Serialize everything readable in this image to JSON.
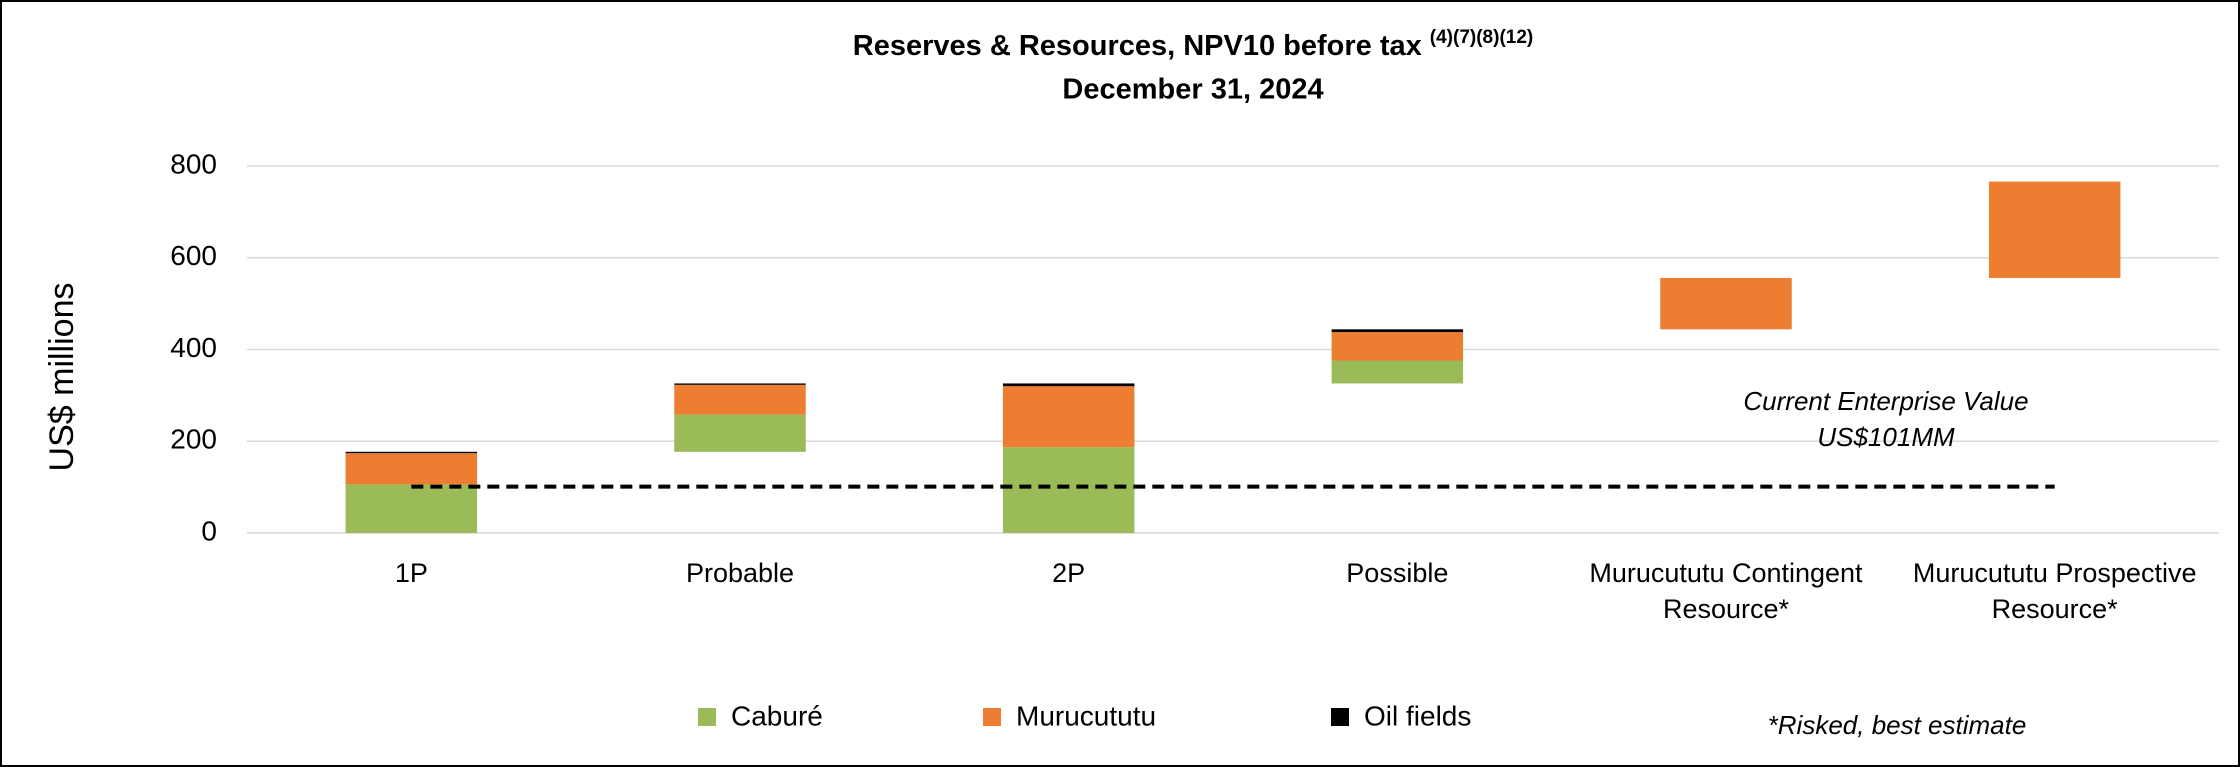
{
  "chart_data": {
    "type": "waterfall",
    "title": "Reserves & Resources, NPV10 before tax",
    "title_superscript": "(4)(7)(8)(12)",
    "subtitle": "December 31, 2024",
    "y_label": "US$ millions",
    "categories": [
      "1P",
      "Probable",
      "2P",
      "Possible",
      "Murucututu Contingent Resource*",
      "Murucututu Prospective Resource*"
    ],
    "measure": [
      "relative",
      "relative",
      "total",
      "relative",
      "relative",
      "relative"
    ],
    "series": [
      {
        "name": "Caburé",
        "color": "#9bbb59",
        "values": [
          106,
          81,
          187,
          50,
          null,
          null
        ]
      },
      {
        "name": "Murucututu",
        "color": "#ed7d31",
        "values": [
          68,
          65,
          133,
          62,
          112,
          210
        ]
      },
      {
        "name": "Oil fields",
        "color": "#000000",
        "values": [
          3,
          3,
          6,
          6,
          null,
          null
        ]
      }
    ],
    "ylim": [
      0,
      800
    ],
    "yticks": [
      0,
      200,
      400,
      600,
      800
    ],
    "grid": true,
    "legend": "bottom",
    "reference_line": {
      "value": 101,
      "label": [
        "Current Enterprise Value",
        "US$101MM"
      ]
    },
    "footnote": "*Risked, best estimate"
  }
}
